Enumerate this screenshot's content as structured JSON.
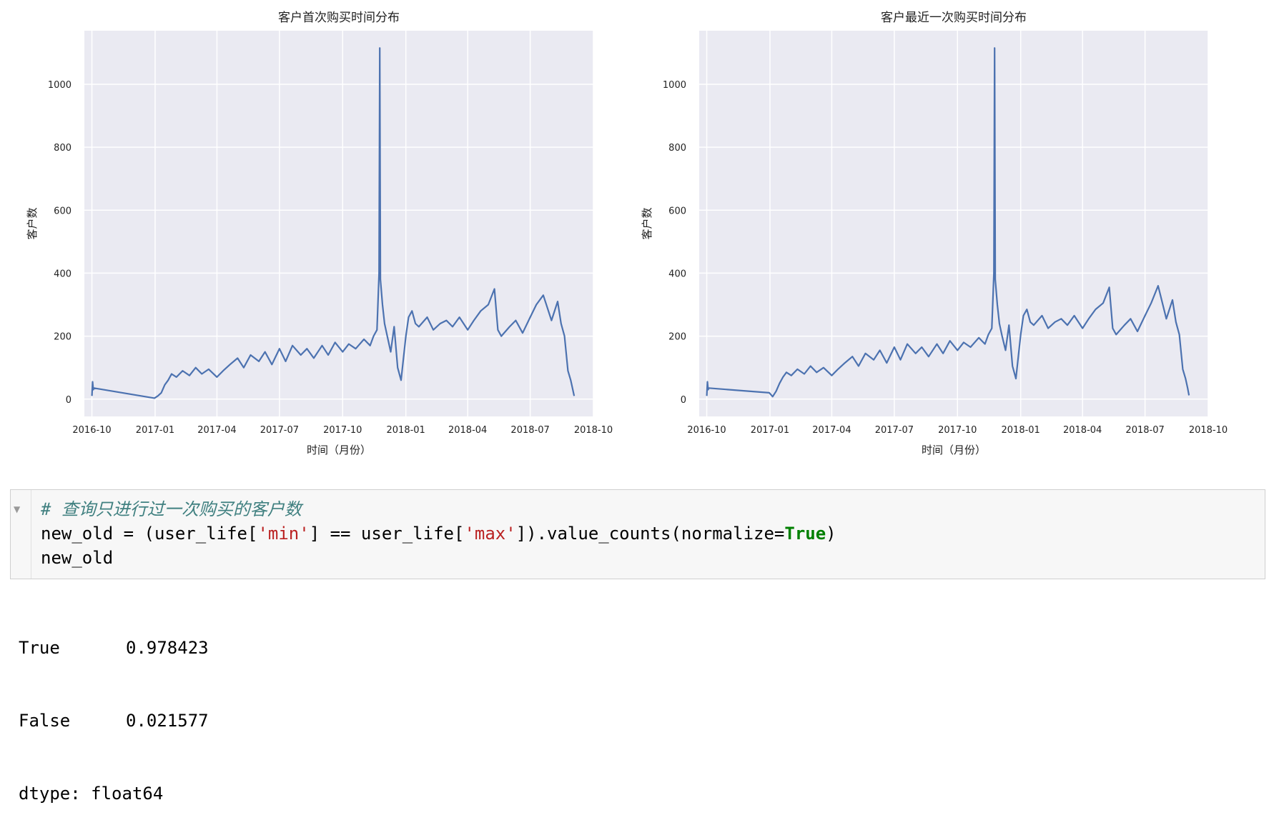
{
  "x_ticks": [
    {
      "date": "2016-10",
      "label": "2016-10"
    },
    {
      "date": "2017-01",
      "label": "2017-01"
    },
    {
      "date": "2017-04",
      "label": "2017-04"
    },
    {
      "date": "2017-07",
      "label": "2017-07"
    },
    {
      "date": "2017-10",
      "label": "2017-10"
    },
    {
      "date": "2018-01",
      "label": "2018-01"
    },
    {
      "date": "2018-04",
      "label": "2018-04"
    },
    {
      "date": "2018-07",
      "label": "2018-07"
    },
    {
      "date": "2018-10",
      "label": "2018-10"
    }
  ],
  "y_ticks": [
    0,
    200,
    400,
    600,
    800,
    1000
  ],
  "chart_data": [
    {
      "type": "line",
      "title": "客户首次购买时间分布",
      "xlabel": "时间（月份）",
      "ylabel": "客户数",
      "xlim": [
        "2016-09-20",
        "2018-10-01"
      ],
      "ylim": [
        -55,
        1170
      ],
      "grid": true,
      "series": [
        {
          "color": "#4c72b0",
          "x": [
            "2016-10-01",
            "2016-10-02",
            "2016-10-03",
            "2016-10-04",
            "2016-12-31",
            "2017-01-05",
            "2017-01-10",
            "2017-01-15",
            "2017-01-20",
            "2017-01-25",
            "2017-02-01",
            "2017-02-10",
            "2017-02-20",
            "2017-03-01",
            "2017-03-10",
            "2017-03-20",
            "2017-04-01",
            "2017-04-10",
            "2017-04-20",
            "2017-05-01",
            "2017-05-10",
            "2017-05-20",
            "2017-06-01",
            "2017-06-10",
            "2017-06-20",
            "2017-07-01",
            "2017-07-10",
            "2017-07-20",
            "2017-08-01",
            "2017-08-10",
            "2017-08-20",
            "2017-09-01",
            "2017-09-10",
            "2017-09-20",
            "2017-10-01",
            "2017-10-10",
            "2017-10-20",
            "2017-11-01",
            "2017-11-10",
            "2017-11-15",
            "2017-11-20",
            "2017-11-23",
            "2017-11-24",
            "2017-11-25",
            "2017-11-28",
            "2017-12-01",
            "2017-12-05",
            "2017-12-10",
            "2017-12-15",
            "2017-12-20",
            "2017-12-25",
            "2018-01-01",
            "2018-01-05",
            "2018-01-10",
            "2018-01-15",
            "2018-01-20",
            "2018-02-01",
            "2018-02-10",
            "2018-02-20",
            "2018-03-01",
            "2018-03-10",
            "2018-03-20",
            "2018-04-01",
            "2018-04-10",
            "2018-04-20",
            "2018-05-01",
            "2018-05-10",
            "2018-05-15",
            "2018-05-20",
            "2018-06-01",
            "2018-06-10",
            "2018-06-20",
            "2018-07-01",
            "2018-07-10",
            "2018-07-20",
            "2018-08-01",
            "2018-08-10",
            "2018-08-15",
            "2018-08-20",
            "2018-08-25",
            "2018-08-29",
            "2018-09-01",
            "2018-09-03"
          ],
          "values": [
            10,
            55,
            30,
            35,
            3,
            10,
            20,
            45,
            60,
            80,
            70,
            90,
            75,
            100,
            80,
            95,
            70,
            90,
            110,
            130,
            100,
            140,
            120,
            150,
            110,
            160,
            120,
            170,
            140,
            160,
            130,
            170,
            140,
            180,
            150,
            175,
            160,
            190,
            170,
            200,
            220,
            400,
            1115,
            380,
            300,
            240,
            200,
            150,
            230,
            100,
            60,
            200,
            260,
            280,
            240,
            230,
            260,
            220,
            240,
            250,
            230,
            260,
            220,
            250,
            280,
            300,
            350,
            220,
            200,
            230,
            250,
            210,
            260,
            300,
            330,
            250,
            310,
            240,
            200,
            90,
            60,
            30,
            10
          ]
        }
      ]
    },
    {
      "type": "line",
      "title": "客户最近一次购买时间分布",
      "xlabel": "时间（月份）",
      "ylabel": "客户数",
      "xlim": [
        "2016-09-20",
        "2018-10-01"
      ],
      "ylim": [
        -55,
        1170
      ],
      "grid": true,
      "series": [
        {
          "color": "#4c72b0",
          "x": [
            "2016-10-01",
            "2016-10-02",
            "2016-10-03",
            "2016-10-04",
            "2016-12-31",
            "2017-01-05",
            "2017-01-10",
            "2017-01-15",
            "2017-01-20",
            "2017-01-25",
            "2017-02-01",
            "2017-02-10",
            "2017-02-20",
            "2017-03-01",
            "2017-03-10",
            "2017-03-20",
            "2017-04-01",
            "2017-04-10",
            "2017-04-20",
            "2017-05-01",
            "2017-05-10",
            "2017-05-20",
            "2017-06-01",
            "2017-06-10",
            "2017-06-20",
            "2017-07-01",
            "2017-07-10",
            "2017-07-20",
            "2017-08-01",
            "2017-08-10",
            "2017-08-20",
            "2017-09-01",
            "2017-09-10",
            "2017-09-20",
            "2017-10-01",
            "2017-10-10",
            "2017-10-20",
            "2017-11-01",
            "2017-11-10",
            "2017-11-15",
            "2017-11-20",
            "2017-11-23",
            "2017-11-24",
            "2017-11-25",
            "2017-11-28",
            "2017-12-01",
            "2017-12-05",
            "2017-12-10",
            "2017-12-15",
            "2017-12-20",
            "2017-12-25",
            "2018-01-01",
            "2018-01-05",
            "2018-01-10",
            "2018-01-15",
            "2018-01-20",
            "2018-02-01",
            "2018-02-10",
            "2018-02-20",
            "2018-03-01",
            "2018-03-10",
            "2018-03-20",
            "2018-04-01",
            "2018-04-10",
            "2018-04-20",
            "2018-05-01",
            "2018-05-10",
            "2018-05-15",
            "2018-05-20",
            "2018-06-01",
            "2018-06-10",
            "2018-06-20",
            "2018-07-01",
            "2018-07-10",
            "2018-07-20",
            "2018-08-01",
            "2018-08-10",
            "2018-08-15",
            "2018-08-20",
            "2018-08-25",
            "2018-08-29",
            "2018-09-01",
            "2018-09-03"
          ],
          "values": [
            10,
            55,
            30,
            35,
            20,
            8,
            25,
            50,
            70,
            85,
            75,
            95,
            80,
            105,
            85,
            100,
            75,
            95,
            115,
            135,
            105,
            145,
            125,
            155,
            115,
            165,
            125,
            175,
            145,
            165,
            135,
            175,
            145,
            185,
            155,
            180,
            165,
            195,
            175,
            205,
            225,
            400,
            1115,
            380,
            300,
            240,
            200,
            155,
            235,
            105,
            65,
            205,
            265,
            285,
            245,
            235,
            265,
            225,
            245,
            255,
            235,
            265,
            225,
            255,
            285,
            305,
            355,
            225,
            205,
            235,
            255,
            215,
            265,
            305,
            360,
            255,
            315,
            245,
            205,
            95,
            65,
            35,
            12
          ]
        }
      ]
    }
  ],
  "code_cell": {
    "collapse_icon": "▼",
    "comment": "# 查询只进行过一次购买的客户数",
    "line2": {
      "a": "new_old = (user_life[",
      "s1": "'min'",
      "b": "] == user_life[",
      "s2": "'max'",
      "c": "]).value_counts(normalize=",
      "kw": "True",
      "d": ")"
    },
    "line3": "new_old"
  },
  "output": {
    "rows": [
      {
        "key": "True",
        "value": "0.978423"
      },
      {
        "key": "False",
        "value": "0.021577"
      }
    ],
    "dtype": "dtype: float64"
  }
}
